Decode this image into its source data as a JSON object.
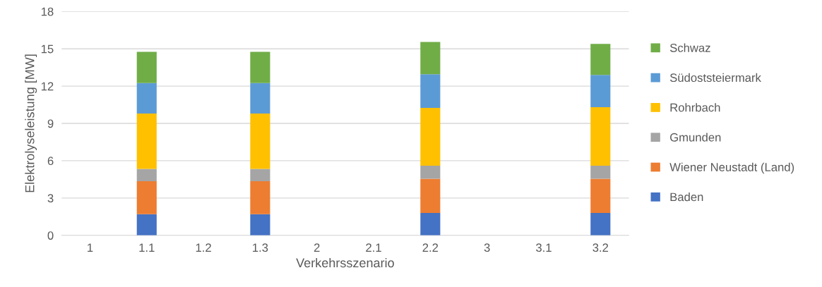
{
  "chart_data": {
    "type": "bar",
    "stacked": true,
    "xlabel": "Verkehrsszenario",
    "ylabel": "Elektrolyseleistung [MW]",
    "categories": [
      "1",
      "1.1",
      "1.2",
      "1.3",
      "2",
      "2.1",
      "2.2",
      "3",
      "3.1",
      "3.2"
    ],
    "ylim": [
      0,
      18
    ],
    "yticks": [
      0,
      3,
      6,
      9,
      12,
      15,
      18
    ],
    "grid": "y",
    "legend": "right",
    "series": [
      {
        "name": "Baden",
        "color": "#4472c4",
        "values": [
          null,
          1.7,
          null,
          1.7,
          null,
          null,
          1.8,
          null,
          null,
          1.8
        ]
      },
      {
        "name": "Wiener Neustadt (Land)",
        "color": "#ed7d31",
        "values": [
          null,
          2.65,
          null,
          2.65,
          null,
          null,
          2.75,
          null,
          null,
          2.75
        ]
      },
      {
        "name": "Gmunden",
        "color": "#a5a5a5",
        "values": [
          null,
          1.0,
          null,
          1.0,
          null,
          null,
          1.05,
          null,
          null,
          1.05
        ]
      },
      {
        "name": "Rohrbach",
        "color": "#ffc000",
        "values": [
          null,
          4.45,
          null,
          4.45,
          null,
          null,
          4.65,
          null,
          null,
          4.7
        ]
      },
      {
        "name": "Südoststeiermark",
        "color": "#5b9bd5",
        "values": [
          null,
          2.45,
          null,
          2.45,
          null,
          null,
          2.7,
          null,
          null,
          2.6
        ]
      },
      {
        "name": "Schwaz",
        "color": "#70ad47",
        "values": [
          null,
          2.5,
          null,
          2.5,
          null,
          null,
          2.6,
          null,
          null,
          2.5
        ]
      }
    ]
  }
}
